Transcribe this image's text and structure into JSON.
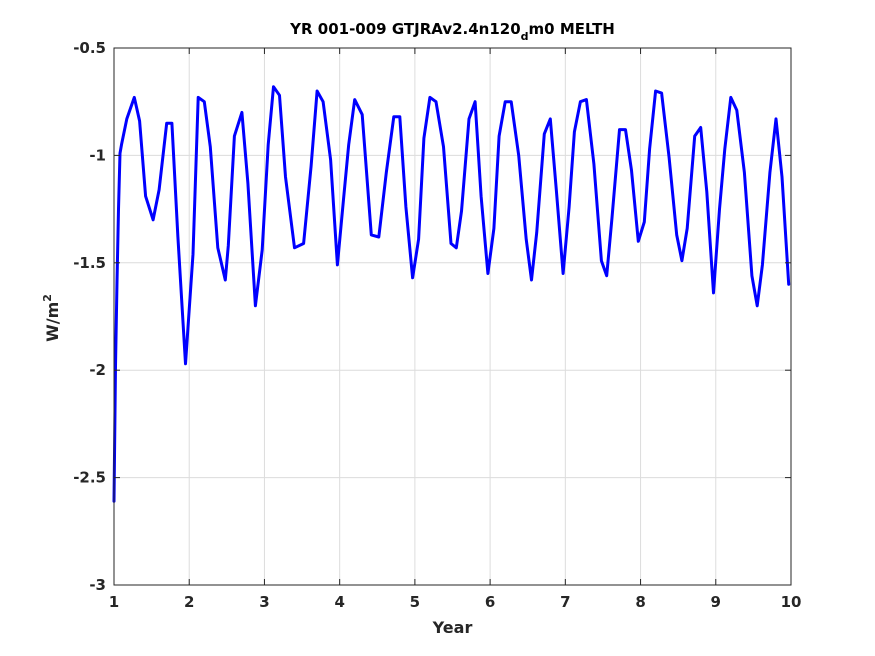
{
  "chart_data": {
    "type": "line",
    "title_main": "YR 001-009 GTJRAv2.4n120",
    "title_sub": "d",
    "title_rest": "m0 MELTH",
    "xlabel": "Year",
    "ylabel_base": "W/m",
    "ylabel_sup": "2",
    "xlim": [
      1,
      10
    ],
    "ylim": [
      -3,
      -0.5
    ],
    "xticks": [
      1,
      2,
      3,
      4,
      5,
      6,
      7,
      8,
      9,
      10
    ],
    "xtick_labels": [
      "1",
      "2",
      "3",
      "4",
      "5",
      "6",
      "7",
      "8",
      "9",
      "10"
    ],
    "yticks": [
      -3,
      -2.5,
      -2,
      -1.5,
      -1,
      -0.5
    ],
    "ytick_labels": [
      "-3",
      "-2.5",
      "-2",
      "-1.5",
      "-1",
      "-0.5"
    ],
    "grid": true,
    "line_color": "#0000ff",
    "series": [
      {
        "x": [
          1.0,
          1.02,
          1.04,
          1.06,
          1.08,
          1.1,
          1.17,
          1.27,
          1.34,
          1.42,
          1.52,
          1.6,
          1.7,
          1.77,
          1.85,
          1.95,
          2.05,
          2.12,
          2.2,
          2.28,
          2.38,
          2.48,
          2.52,
          2.6,
          2.7,
          2.78,
          2.88,
          2.97,
          3.05,
          3.12,
          3.2,
          3.28,
          3.4,
          3.52,
          3.62,
          3.7,
          3.78,
          3.88,
          3.97,
          4.05,
          4.12,
          4.2,
          4.3,
          4.42,
          4.52,
          4.62,
          4.72,
          4.8,
          4.88,
          4.97,
          5.05,
          5.12,
          5.2,
          5.28,
          5.38,
          5.48,
          5.55,
          5.62,
          5.72,
          5.8,
          5.88,
          5.97,
          6.05,
          6.12,
          6.2,
          6.28,
          6.38,
          6.48,
          6.55,
          6.62,
          6.72,
          6.8,
          6.88,
          6.97,
          7.05,
          7.12,
          7.2,
          7.28,
          7.38,
          7.48,
          7.55,
          7.62,
          7.72,
          7.8,
          7.88,
          7.97,
          8.05,
          8.12,
          8.2,
          8.28,
          8.38,
          8.48,
          8.55,
          8.62,
          8.72,
          8.8,
          8.88,
          8.97,
          9.05,
          9.12,
          9.2,
          9.28,
          9.38,
          9.48,
          9.55,
          9.62,
          9.72,
          9.8,
          9.88,
          9.97
        ],
        "values": [
          -2.61,
          -1.98,
          -1.59,
          -1.25,
          -0.99,
          -0.95,
          -0.83,
          -0.73,
          -0.84,
          -1.19,
          -1.3,
          -1.16,
          -0.85,
          -0.85,
          -1.38,
          -1.97,
          -1.46,
          -0.73,
          -0.75,
          -0.96,
          -1.43,
          -1.58,
          -1.42,
          -0.91,
          -0.8,
          -1.13,
          -1.7,
          -1.44,
          -0.95,
          -0.68,
          -0.72,
          -1.1,
          -1.43,
          -1.41,
          -1.05,
          -0.7,
          -0.75,
          -1.02,
          -1.51,
          -1.21,
          -0.95,
          -0.74,
          -0.81,
          -1.37,
          -1.38,
          -1.08,
          -0.82,
          -0.82,
          -1.24,
          -1.57,
          -1.39,
          -0.92,
          -0.73,
          -0.75,
          -0.96,
          -1.41,
          -1.43,
          -1.26,
          -0.83,
          -0.75,
          -1.19,
          -1.55,
          -1.34,
          -0.91,
          -0.75,
          -0.75,
          -1.0,
          -1.39,
          -1.58,
          -1.36,
          -0.9,
          -0.83,
          -1.16,
          -1.55,
          -1.24,
          -0.89,
          -0.75,
          -0.74,
          -1.04,
          -1.49,
          -1.56,
          -1.29,
          -0.88,
          -0.88,
          -1.07,
          -1.4,
          -1.31,
          -0.97,
          -0.7,
          -0.71,
          -1.01,
          -1.37,
          -1.49,
          -1.34,
          -0.91,
          -0.87,
          -1.17,
          -1.64,
          -1.25,
          -0.97,
          -0.73,
          -0.79,
          -1.08,
          -1.56,
          -1.7,
          -1.51,
          -1.08,
          -0.83,
          -1.1,
          -1.6
        ]
      }
    ]
  }
}
